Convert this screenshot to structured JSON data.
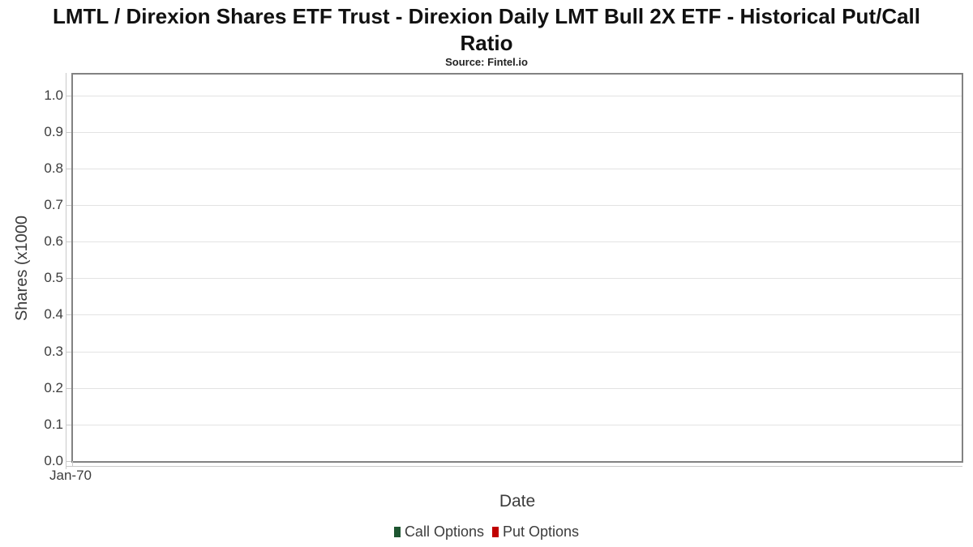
{
  "chart_data": {
    "type": "line",
    "title": "LMTL / Direxion Shares ETF Trust - Direxion Daily LMT Bull 2X ETF - Historical Put/Call Ratio",
    "subtitle": "Source: Fintel.io",
    "xlabel": "Date",
    "ylabel": "Shares (x1000",
    "x_ticks": [
      "Jan-70"
    ],
    "y_ticks": [
      "0.0",
      "0.1",
      "0.2",
      "0.3",
      "0.4",
      "0.5",
      "0.6",
      "0.7",
      "0.8",
      "0.9",
      "1.0"
    ],
    "ylim": [
      0,
      1.057
    ],
    "grid": true,
    "legend_position": "bottom",
    "series": [
      {
        "name": "Call Options",
        "color": "#1e5631",
        "values": []
      },
      {
        "name": "Put Options",
        "color": "#c00000",
        "values": []
      }
    ]
  }
}
